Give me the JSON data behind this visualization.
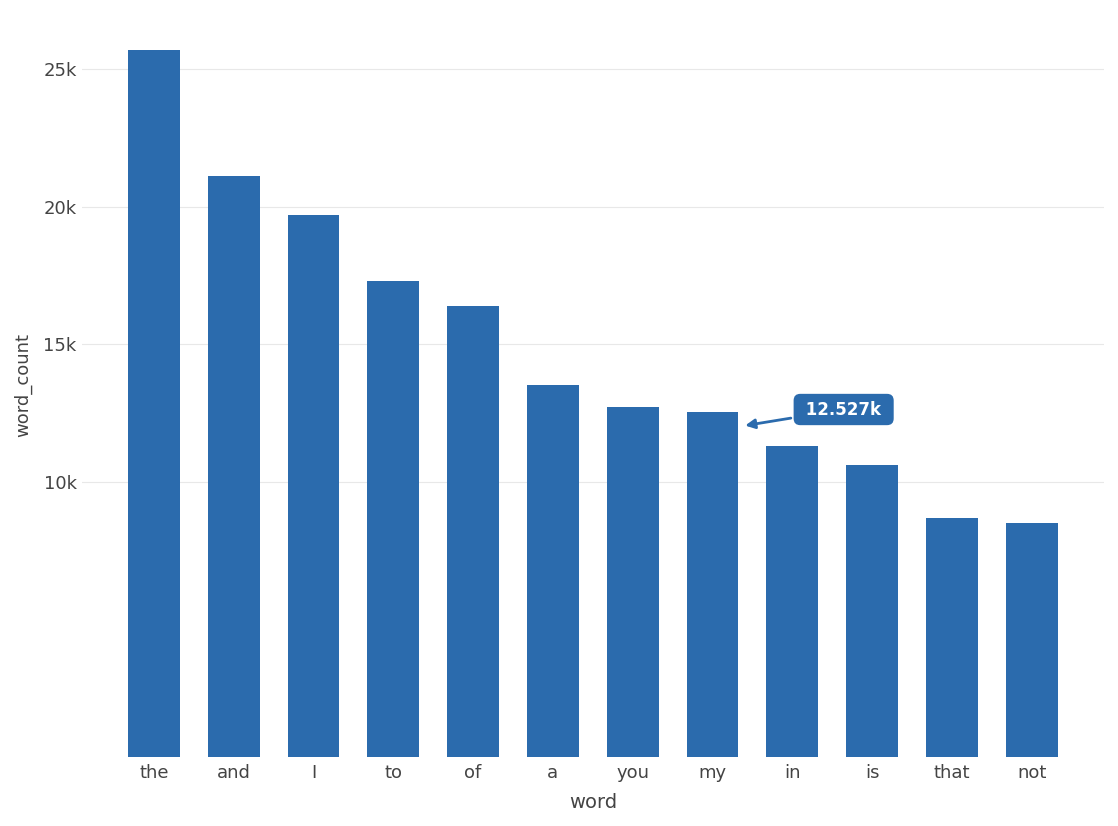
{
  "categories": [
    "the",
    "and",
    "I",
    "to",
    "of",
    "a",
    "you",
    "my",
    "in",
    "is",
    "that",
    "not"
  ],
  "values": [
    25700,
    21100,
    19700,
    17300,
    16400,
    13500,
    12700,
    12527,
    11300,
    10600,
    8700,
    8500
  ],
  "bar_color": "#2b6bad",
  "ylabel": "word_count",
  "xlabel": "word",
  "ylim": [
    0,
    27000
  ],
  "yticks": [
    10000,
    15000,
    20000,
    25000
  ],
  "ytick_labels": [
    "10k",
    "15k",
    "20k",
    "25k"
  ],
  "tooltip_bar_index": 7,
  "tooltip_text": "12.527k",
  "background_color": "#ffffff",
  "grid_color": "#e8e8e8",
  "bar_width": 0.65
}
